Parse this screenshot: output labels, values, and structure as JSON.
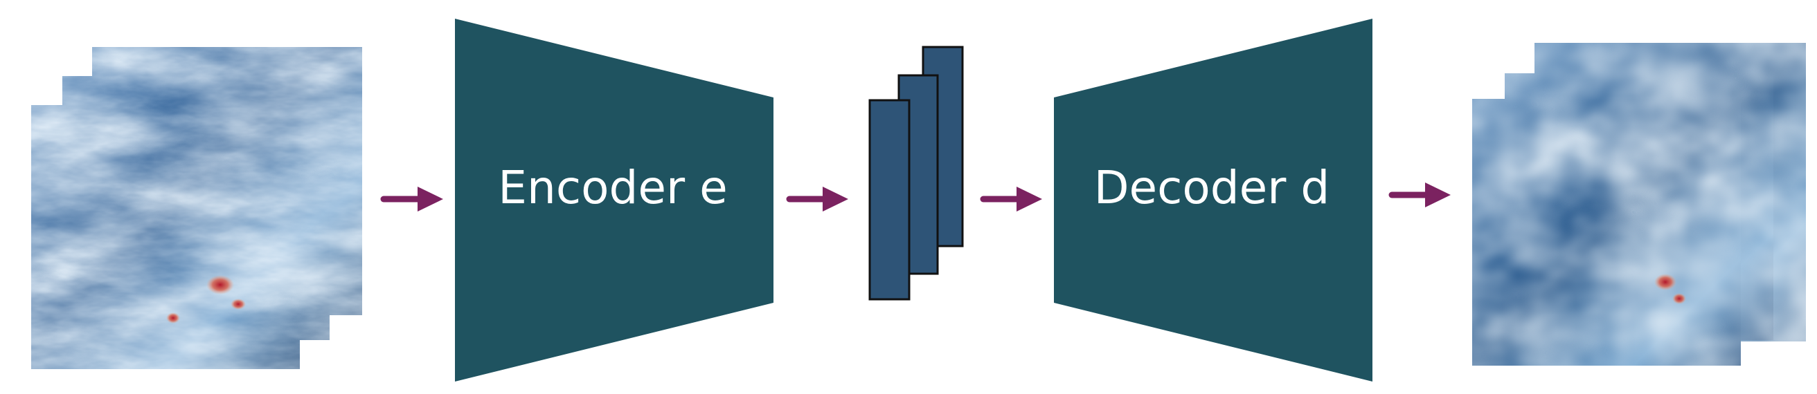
{
  "encoder": {
    "label": "Encoder e",
    "color": "#1f5360"
  },
  "decoder": {
    "label": "Decoder d",
    "color": "#1f5360"
  },
  "latent": {
    "color": "#2e5477",
    "stroke": "#111111",
    "count": 3
  },
  "arrow_color": "#7b2260",
  "input_frames": {
    "count": 3,
    "palette": [
      "#0d2e55",
      "#1c4f86",
      "#3d7ab3",
      "#8fbadb",
      "#eef5fb",
      "#b2182b"
    ]
  },
  "output_frames": {
    "count": 3,
    "palette": [
      "#123a66",
      "#235f95",
      "#4d87bb",
      "#9cc3e0",
      "#eef5fb",
      "#b2182b"
    ]
  }
}
